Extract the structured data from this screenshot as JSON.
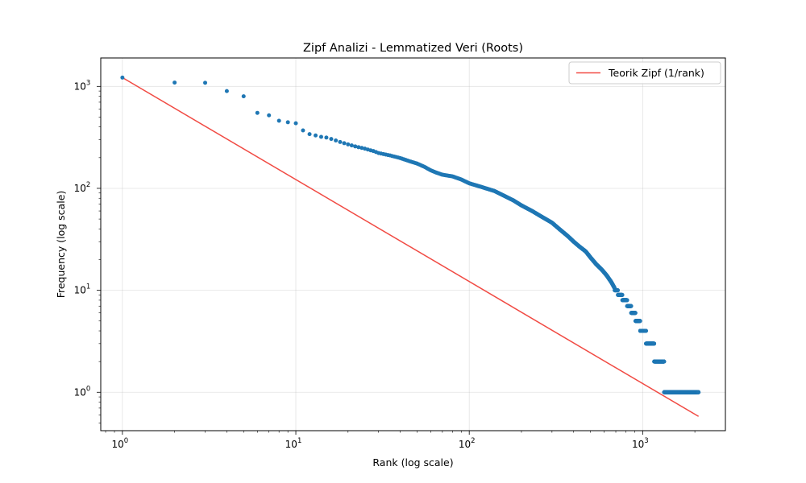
{
  "chart_data": {
    "type": "scatter",
    "title": "Zipf Analizi - Lemmatized Veri (Roots)",
    "xlabel": "Rank (log scale)",
    "ylabel": "Frequency (log scale)",
    "x_scale": "log",
    "y_scale": "log",
    "xlim": [
      0.75,
      3000
    ],
    "ylim": [
      0.42,
      1900
    ],
    "x_ticks": [
      {
        "value": 1,
        "label": "10",
        "exp": "0"
      },
      {
        "value": 10,
        "label": "10",
        "exp": "1"
      },
      {
        "value": 100,
        "label": "10",
        "exp": "2"
      },
      {
        "value": 1000,
        "label": "10",
        "exp": "3"
      }
    ],
    "y_ticks": [
      {
        "value": 1,
        "label": "10",
        "exp": "0"
      },
      {
        "value": 10,
        "label": "10",
        "exp": "1"
      },
      {
        "value": 100,
        "label": "10",
        "exp": "2"
      },
      {
        "value": 1000,
        "label": "10",
        "exp": "3"
      }
    ],
    "grid": true,
    "legend_position": "top-right",
    "series": [
      {
        "kind": "points",
        "color": "#1f77b4",
        "points": [
          [
            1,
            1220
          ],
          [
            2,
            1090
          ],
          [
            3,
            1085
          ],
          [
            4,
            900
          ],
          [
            5,
            800
          ],
          [
            6,
            550
          ],
          [
            7,
            520
          ],
          [
            8,
            460
          ],
          [
            9,
            445
          ],
          [
            10,
            435
          ],
          [
            11,
            370
          ],
          [
            12,
            340
          ],
          [
            13,
            330
          ],
          [
            14,
            320
          ],
          [
            15,
            315
          ],
          [
            16,
            305
          ],
          [
            18,
            285
          ],
          [
            20,
            270
          ],
          [
            22,
            258
          ],
          [
            25,
            245
          ],
          [
            28,
            232
          ],
          [
            30,
            222
          ],
          [
            35,
            210
          ],
          [
            40,
            198
          ],
          [
            45,
            185
          ],
          [
            50,
            175
          ],
          [
            55,
            163
          ],
          [
            60,
            150
          ],
          [
            65,
            142
          ],
          [
            70,
            136
          ],
          [
            80,
            131
          ],
          [
            90,
            122
          ],
          [
            100,
            112
          ],
          [
            120,
            102
          ],
          [
            140,
            94
          ],
          [
            160,
            84
          ],
          [
            180,
            76
          ],
          [
            200,
            68
          ],
          [
            230,
            60
          ],
          [
            260,
            53
          ],
          [
            300,
            46
          ],
          [
            330,
            40
          ],
          [
            370,
            34
          ],
          [
            400,
            30
          ],
          [
            430,
            27
          ],
          [
            470,
            24
          ],
          [
            500,
            21
          ],
          [
            540,
            18
          ],
          [
            580,
            16
          ],
          [
            620,
            14
          ],
          [
            660,
            12
          ],
          [
            700,
            10
          ],
          [
            740,
            9
          ],
          [
            790,
            8
          ],
          [
            840,
            7
          ],
          [
            880,
            6
          ],
          [
            940,
            5
          ],
          [
            1000,
            4
          ],
          [
            1100,
            3
          ],
          [
            1250,
            2
          ],
          [
            1450,
            1
          ],
          [
            2100,
            1
          ]
        ]
      },
      {
        "kind": "line",
        "name": "Teorik Zipf (1/rank)",
        "color": "#f14b44",
        "line": [
          [
            1,
            1220
          ],
          [
            2100,
            0.58
          ]
        ]
      }
    ]
  }
}
